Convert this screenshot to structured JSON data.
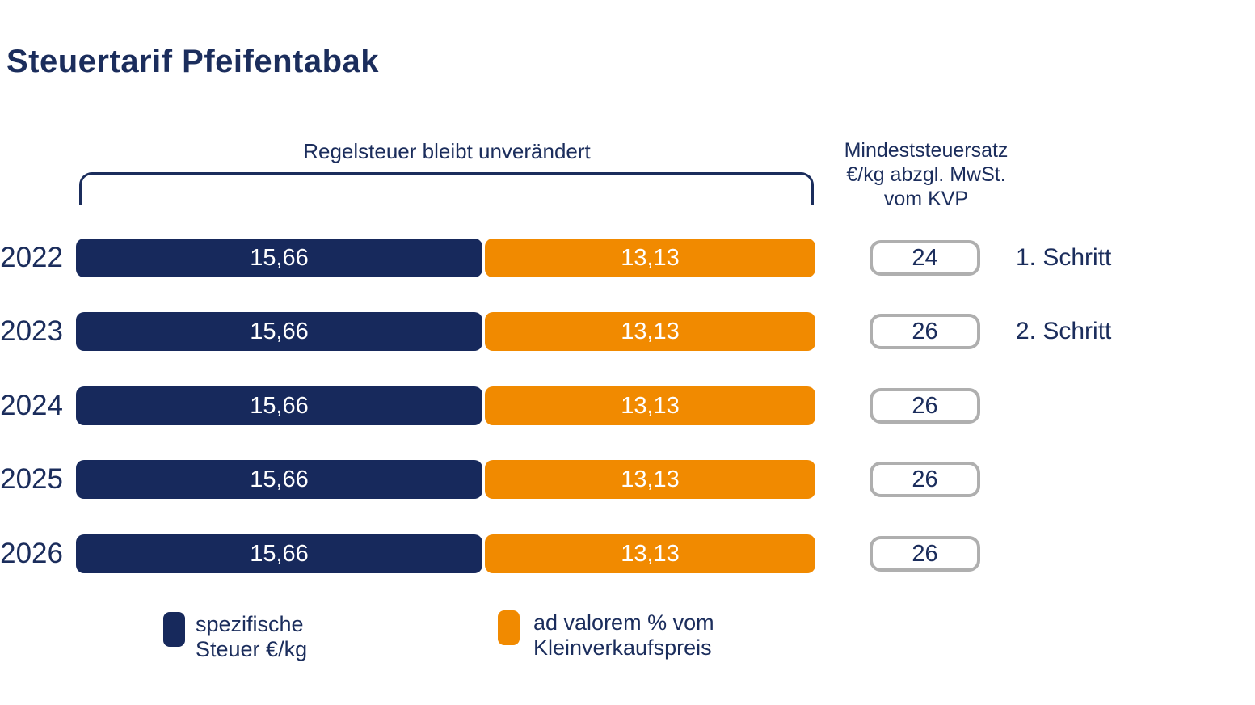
{
  "title": "Steuertarif Pfeifentabak",
  "colors": {
    "navy": "#17295C",
    "orange": "#F18A00",
    "text_navy": "#1B2D5C",
    "box_border": "#AFAFAF"
  },
  "header": {
    "bracket_label": "Regelsteuer bleibt unverändert",
    "min_tax_line1": "Mindeststeuersatz",
    "min_tax_line2": "€/kg abzgl. MwSt.",
    "min_tax_line3": "vom KVP"
  },
  "rows": [
    {
      "year": "2022",
      "specific": "15,66",
      "advalorem": "13,13",
      "min_tax": "24",
      "step": "1. Schritt"
    },
    {
      "year": "2023",
      "specific": "15,66",
      "advalorem": "13,13",
      "min_tax": "26",
      "step": "2. Schritt"
    },
    {
      "year": "2024",
      "specific": "15,66",
      "advalorem": "13,13",
      "min_tax": "26",
      "step": ""
    },
    {
      "year": "2025",
      "specific": "15,66",
      "advalorem": "13,13",
      "min_tax": "26",
      "step": ""
    },
    {
      "year": "2026",
      "specific": "15,66",
      "advalorem": "13,13",
      "min_tax": "26",
      "step": ""
    }
  ],
  "legend": {
    "specific_line1": "spezifische",
    "specific_line2": "Steuer €/kg",
    "advalorem_line1": "ad valorem % vom",
    "advalorem_line2": "Kleinverkaufspreis"
  },
  "chart_data": {
    "type": "bar",
    "orientation": "horizontal-stacked",
    "title": "Steuertarif Pfeifentabak",
    "categories": [
      "2022",
      "2023",
      "2024",
      "2025",
      "2026"
    ],
    "series": [
      {
        "name": "spezifische Steuer €/kg",
        "values": [
          15.66,
          15.66,
          15.66,
          15.66,
          15.66
        ],
        "color": "#17295C"
      },
      {
        "name": "ad valorem % vom Kleinverkaufspreis",
        "values": [
          13.13,
          13.13,
          13.13,
          13.13,
          13.13
        ],
        "color": "#F18A00"
      }
    ],
    "min_tax_column": {
      "header": "Mindeststeuersatz €/kg abzgl. MwSt. vom KVP",
      "values": [
        24,
        26,
        26,
        26,
        26
      ]
    },
    "annotations": [
      "Regelsteuer bleibt unverändert",
      "1. Schritt (2022)",
      "2. Schritt (2023)"
    ],
    "legend_position": "bottom",
    "grid": false
  }
}
